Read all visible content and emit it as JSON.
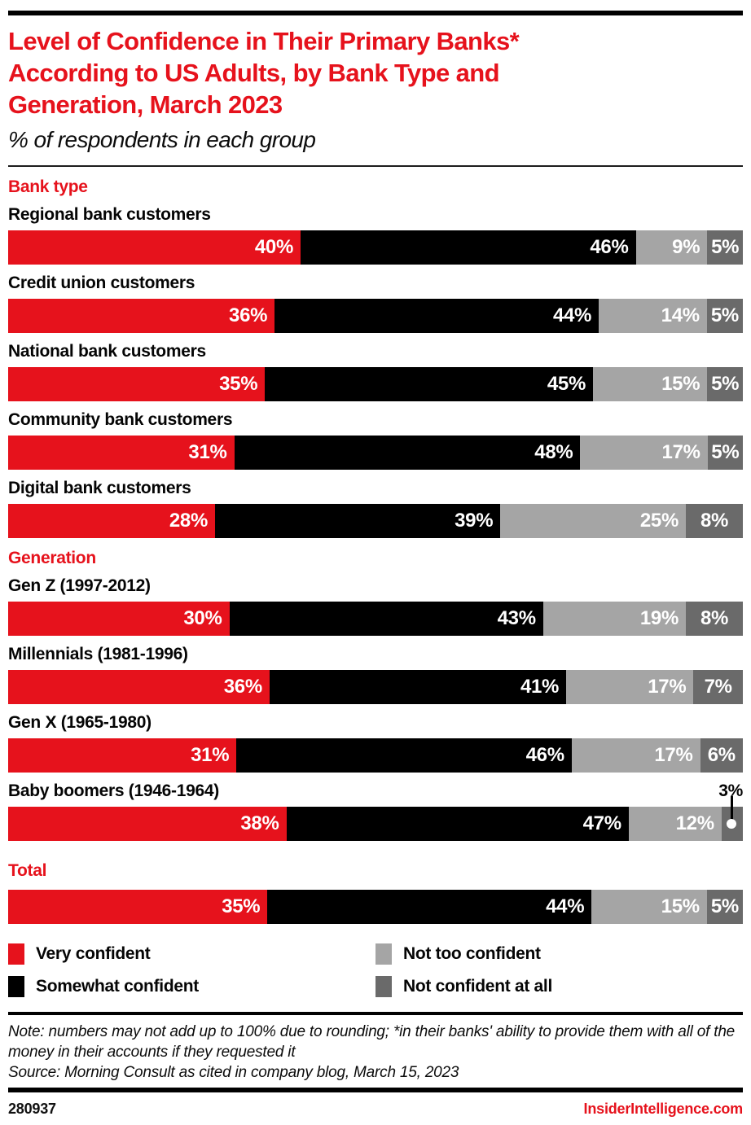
{
  "theme": {
    "accent_red": "#e6121c",
    "series_colors": [
      "#e6121c",
      "#000000",
      "#a5a5a5",
      "#6a6a6a"
    ]
  },
  "header": {
    "title_lines": [
      "Level of Confidence in Their Primary Banks*",
      "According to US Adults, by Bank Type and",
      "Generation, March 2023"
    ],
    "subtitle": "% of respondents in each group"
  },
  "chart_data": {
    "type": "bar",
    "stacked": true,
    "orientation": "horizontal",
    "unit": "%",
    "x_range": [
      0,
      100
    ],
    "series_names": [
      "Very confident",
      "Somewhat confident",
      "Not too confident",
      "Not confident at all"
    ],
    "series_keys": [
      "very-confident",
      "somewhat-confident",
      "not-too-confident",
      "not-confident-at-all"
    ],
    "colors": [
      "#e6121c",
      "#000000",
      "#a5a5a5",
      "#6a6a6a"
    ],
    "sections": [
      {
        "heading": "Bank type",
        "rows": [
          {
            "label": "Regional bank customers",
            "values": [
              40,
              46,
              9,
              5
            ]
          },
          {
            "label": "Credit union customers",
            "values": [
              36,
              44,
              14,
              5
            ]
          },
          {
            "label": "National bank customers",
            "values": [
              35,
              45,
              15,
              5
            ]
          },
          {
            "label": "Community bank customers",
            "values": [
              31,
              48,
              17,
              5
            ]
          },
          {
            "label": "Digital bank customers",
            "values": [
              28,
              39,
              25,
              8
            ]
          }
        ]
      },
      {
        "heading": "Generation",
        "rows": [
          {
            "label": "Gen Z (1997-2012)",
            "values": [
              30,
              43,
              19,
              8
            ]
          },
          {
            "label": "Millennials (1981-1996)",
            "values": [
              36,
              41,
              17,
              7
            ]
          },
          {
            "label": "Gen X (1965-1980)",
            "values": [
              31,
              46,
              17,
              6
            ]
          },
          {
            "label": "Baby boomers (1946-1964)",
            "values": [
              38,
              47,
              12,
              3
            ],
            "callout_last": true
          }
        ]
      },
      {
        "heading": "Total",
        "rows": [
          {
            "label": "",
            "values": [
              35,
              44,
              15,
              5
            ]
          }
        ]
      }
    ]
  },
  "legend": [
    {
      "label": "Very confident",
      "color": "#e6121c"
    },
    {
      "label": "Not too confident",
      "color": "#a5a5a5"
    },
    {
      "label": "Somewhat confident",
      "color": "#000000"
    },
    {
      "label": "Not confident at all",
      "color": "#6a6a6a"
    }
  ],
  "note": {
    "text": "Note: numbers may not add up to 100% due to rounding; *in their banks' ability to provide them with all of the money in their accounts if they requested it",
    "source": "Source: Morning Consult as cited in company blog, March 15, 2023"
  },
  "footer": {
    "chart_id": "280937",
    "site": "InsiderIntelligence.com"
  }
}
